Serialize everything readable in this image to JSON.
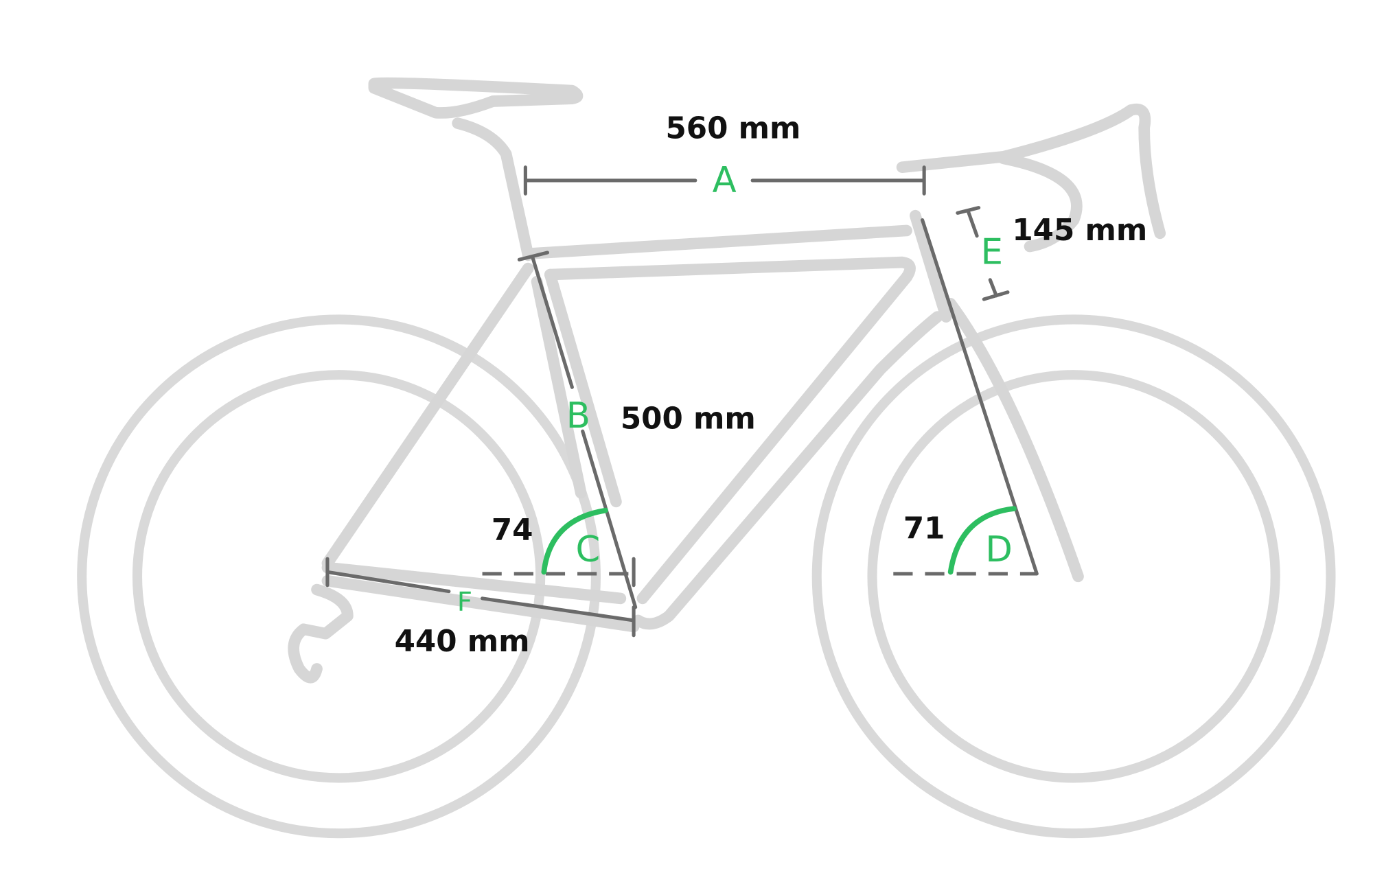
{
  "diagram": {
    "colors": {
      "frame": "#d6d6d6",
      "measure": "#6a6a6a",
      "accent": "#2dbe60",
      "text": "#111111"
    },
    "dimensions": [
      {
        "letter": "A",
        "value": "560 mm"
      },
      {
        "letter": "B",
        "value": "500 mm"
      },
      {
        "letter": "C",
        "value": "74"
      },
      {
        "letter": "D",
        "value": "71"
      },
      {
        "letter": "E",
        "value": "145 mm"
      },
      {
        "letter": "F",
        "value": "440 mm"
      }
    ]
  }
}
